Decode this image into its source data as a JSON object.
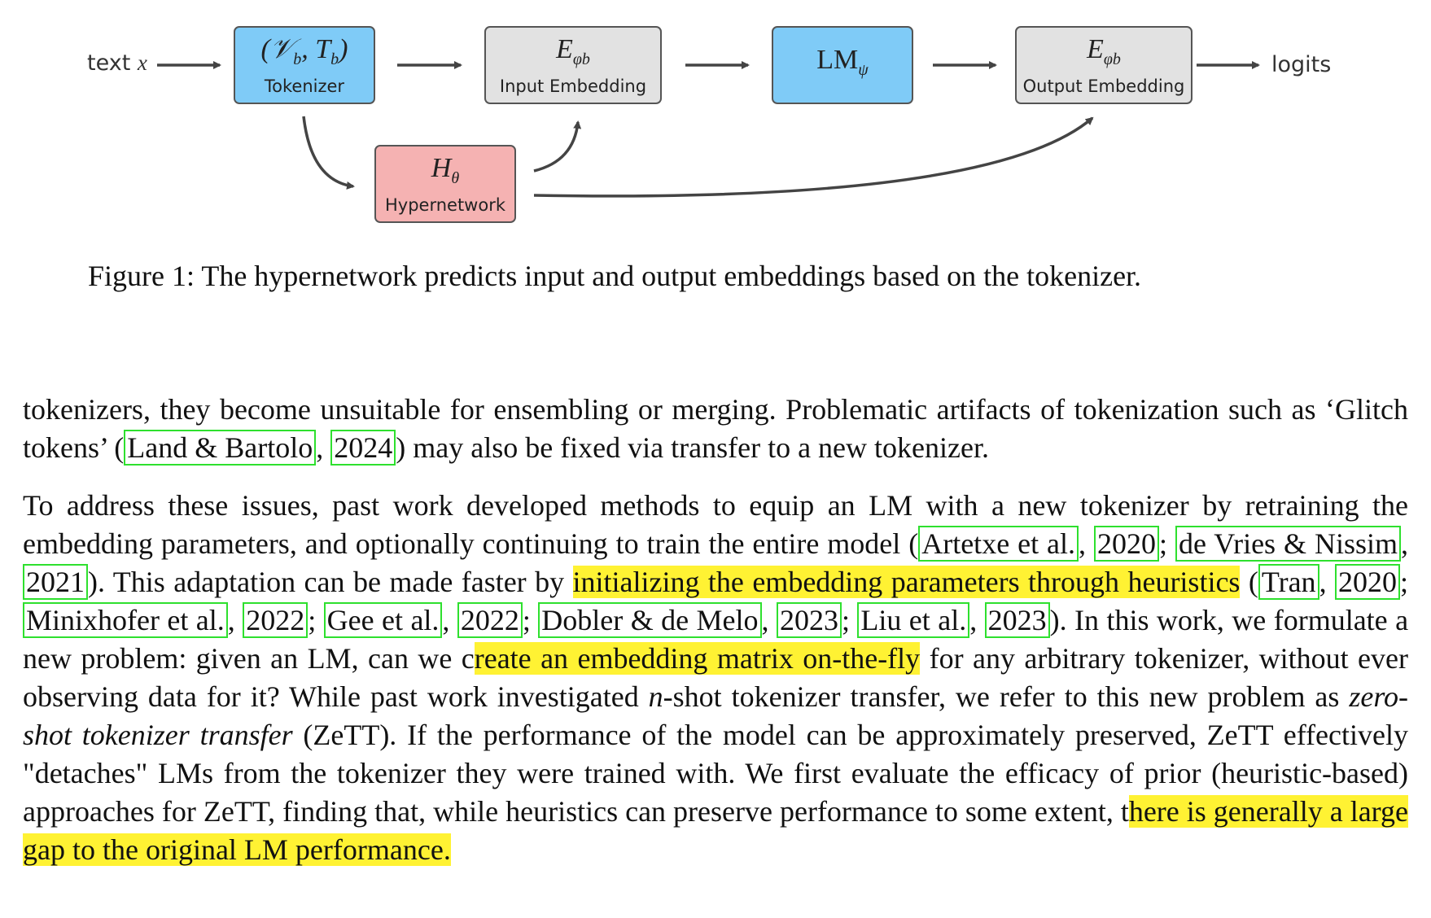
{
  "figure": {
    "input_label": "text",
    "input_var": "x",
    "tokenizer": {
      "math": "(𝒱",
      "math_sub1": "b",
      "math_mid": ", T",
      "math_sub2": "b",
      "math_end": ")",
      "label": "Tokenizer"
    },
    "input_embedding": {
      "math": "E",
      "math_sub": "φb",
      "label": "Input Embedding"
    },
    "lm": {
      "math": "LM",
      "math_sub": "ψ"
    },
    "output_embedding": {
      "math": "E",
      "math_sub": "φb",
      "label": "Output Embedding"
    },
    "hypernetwork": {
      "math": "H",
      "math_sub": "θ",
      "label": "Hypernetwork"
    },
    "output_label": "logits",
    "colors": {
      "tokenizer": "#7fcbf7",
      "lm": "#7fcbf7",
      "embedding": "#e2e2e2",
      "hypernetwork": "#f5b2b2",
      "highlight": "#fff233",
      "citation_box": "#2ee02e"
    },
    "caption": "Figure 1: The hypernetwork predicts input and output embeddings based on the tokenizer."
  },
  "paragraph1": {
    "t1": "tokenizers, they become unsuitable for ensembling or merging. Problematic artifacts of tokenization such as ‘Glitch tokens’ (",
    "c1": "Land & Bartolo",
    "t2": ", ",
    "c2": "2024",
    "t3": ") may also be fixed via transfer to a new tokenizer."
  },
  "paragraph2": {
    "t1": "To address these issues, past work developed methods to equip an LM with a new tokenizer by retraining the embedding parameters, and optionally continuing to train the entire model (",
    "c1": "Artetxe et al.",
    "t2": ", ",
    "c2": "2020",
    "t3": "; ",
    "c3": "de Vries & Nissim",
    "t4": ", ",
    "c4": "2021",
    "t5": ").  This adaptation can be made faster by ",
    "h1": "initializing the embedding parameters through heuristics",
    "t6": " (",
    "c5": "Tran",
    "t7": ", ",
    "c6": "2020",
    "t8": "; ",
    "c7": "Minixhofer et al.",
    "t9": ", ",
    "c8": "2022",
    "t10": "; ",
    "c9": "Gee et al.",
    "t11": ", ",
    "c10": "2022",
    "t12": "; ",
    "c11": "Dobler & de Melo",
    "t13": ", ",
    "c12": "2023",
    "t14": "; ",
    "c13": "Liu et al.",
    "t15": ", ",
    "c14": "2023",
    "t16": "). In this work, we formulate a new problem: given an LM, can we c",
    "h2": "reate an embedding matrix on-the-fly",
    "t17": " for any arbitrary tokenizer, without ever observing data for it? While past work investigated ",
    "n": "n",
    "t18": "-shot tokenizer transfer, we refer to this new problem as ",
    "e1": "zero-shot tokenizer transfer",
    "t19": " (ZeTT). If the performance of the model can be approximately preserved, ZeTT effectively \"detaches\" LMs from the tokenizer they were trained with. We first evaluate the efficacy of prior (heuristic-based) approaches for ZeTT, finding that, while heuristics can preserve performance to some extent, t",
    "h3": "here is generally a large gap to the original LM performance."
  }
}
